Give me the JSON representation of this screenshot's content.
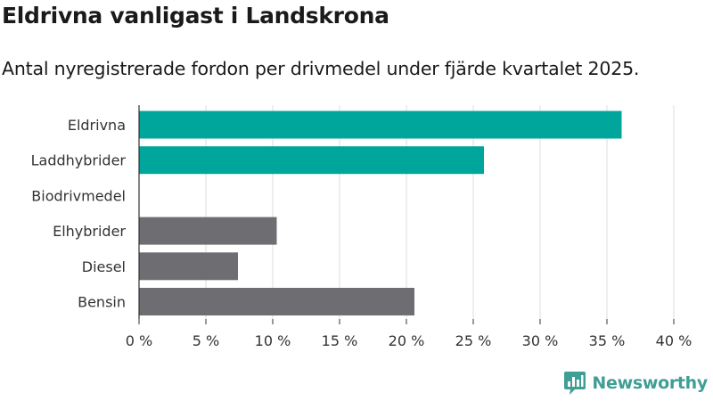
{
  "chart_data": {
    "type": "bar",
    "orientation": "horizontal",
    "title": "Eldrivna vanligast i Landskrona",
    "subtitle": "Antal nyregistrerade fordon per drivmedel under fjärde kvartalet 2025.",
    "categories": [
      "Eldrivna",
      "Laddhybrider",
      "Biodrivmedel",
      "Elhybrider",
      "Diesel",
      "Bensin"
    ],
    "values": [
      36.1,
      25.8,
      0,
      10.3,
      7.4,
      20.6
    ],
    "highlighted": [
      true,
      true,
      true,
      false,
      false,
      false
    ],
    "xlim": [
      0,
      40
    ],
    "xticks": [
      0,
      5,
      10,
      15,
      20,
      25,
      30,
      35,
      40
    ],
    "xtick_labels": [
      "0 %",
      "5 %",
      "10 %",
      "15 %",
      "20 %",
      "25 %",
      "30 %",
      "35 %",
      "40 %"
    ],
    "xlabel": "",
    "ylabel": "",
    "grid": true,
    "colors": {
      "highlight": "#00a59b",
      "other": "#6d6d72",
      "grid": "#dcdcdc",
      "axis": "#333333"
    }
  },
  "brand": {
    "name": "Newsworthy",
    "color": "#3f9e95",
    "icon": "bar-chart-bubble-icon"
  }
}
